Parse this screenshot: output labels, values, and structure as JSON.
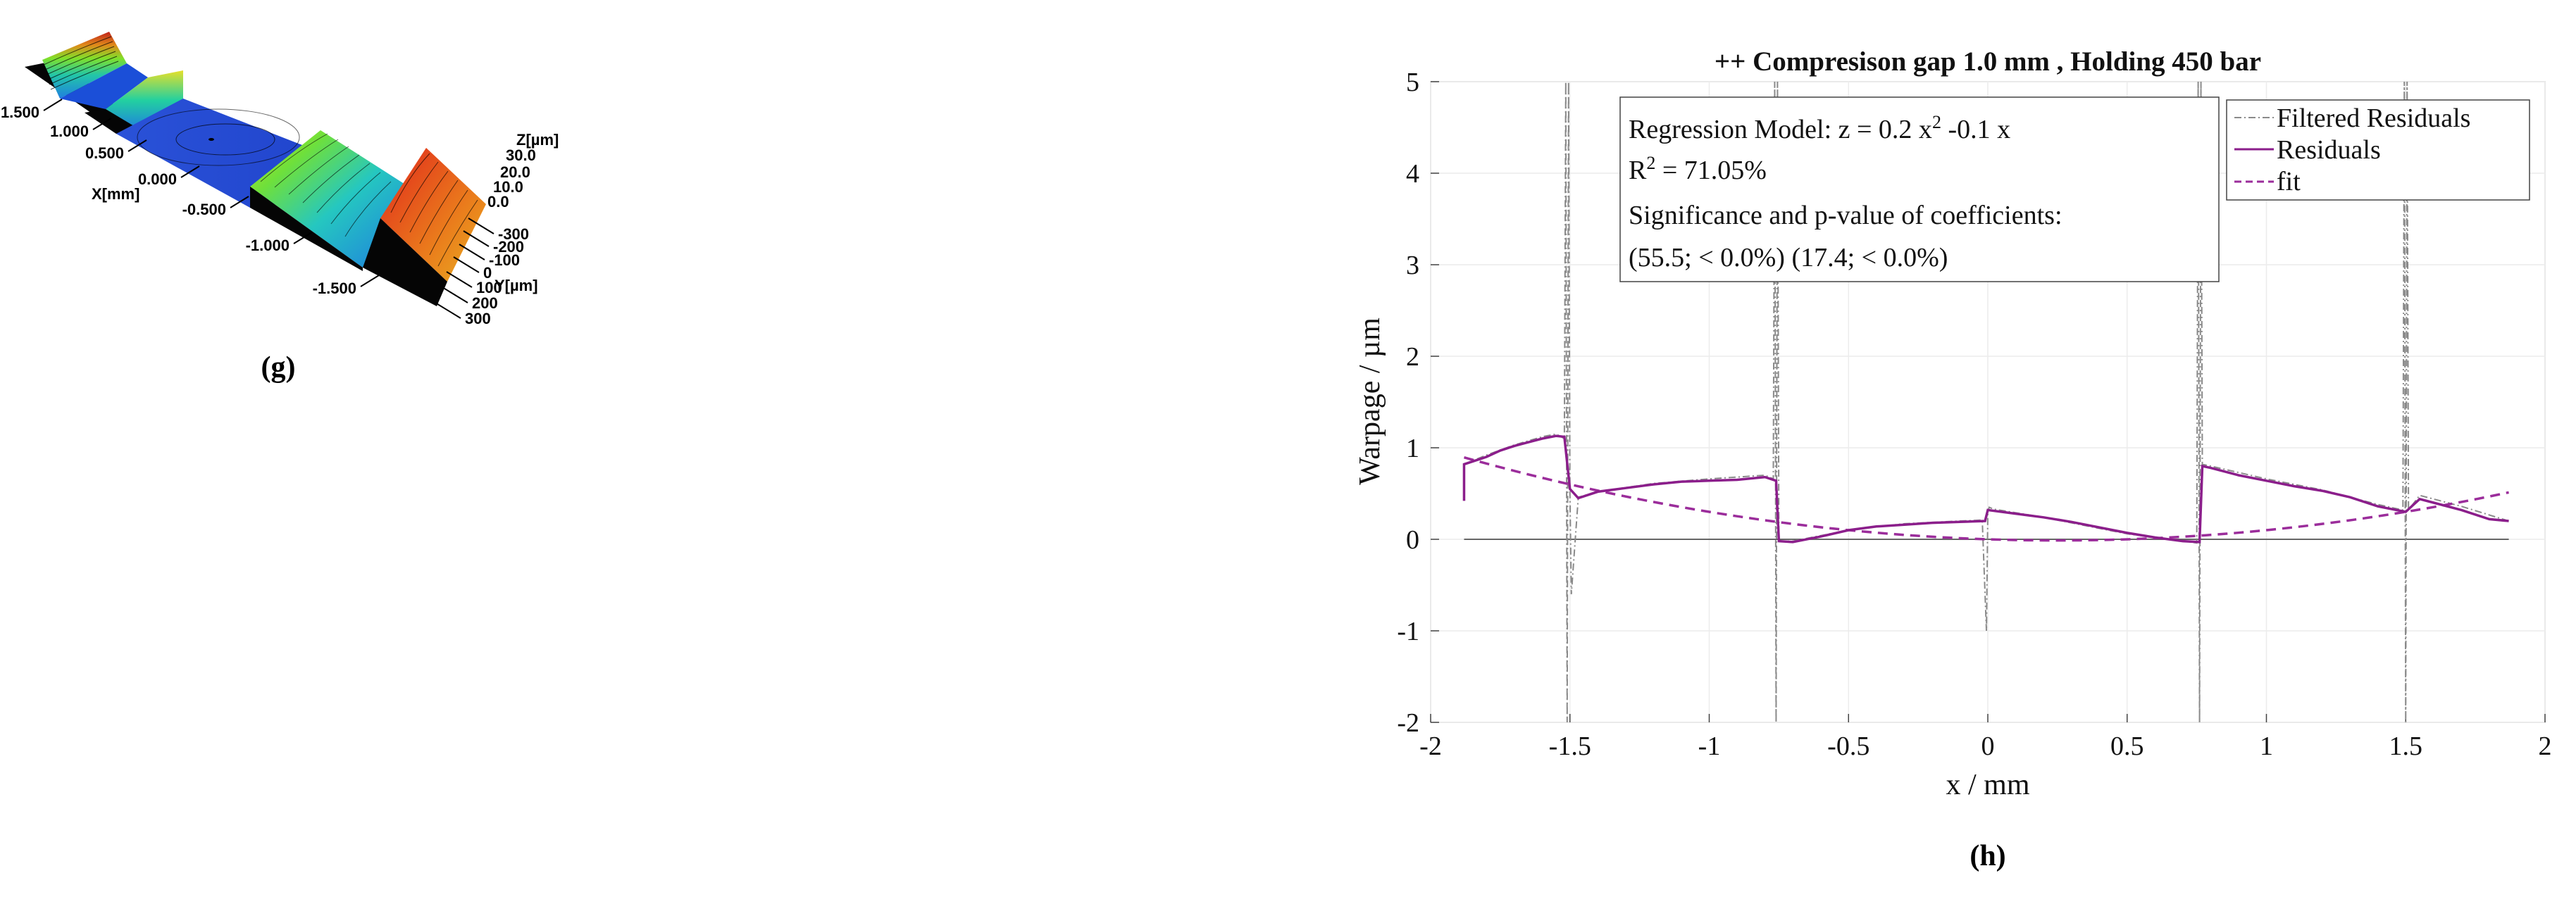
{
  "panel_labels": {
    "g": "(g)",
    "h": "(h)"
  },
  "surface_3d": {
    "x_axis": {
      "label": "X[mm]",
      "ticks": [
        "1.500",
        "1.000",
        "0.500",
        "0.000",
        "-0.500",
        "-1.000",
        "-1.500"
      ]
    },
    "y_axis": {
      "label": "Y[µm]",
      "ticks": [
        "-300",
        "-200",
        "-100",
        "0",
        "100",
        "200",
        "300"
      ]
    },
    "z_axis": {
      "label": "Z[µm]",
      "ticks": [
        "30.0",
        "20.0",
        "10.0",
        "0.0"
      ]
    }
  },
  "chart_data": {
    "type": "line",
    "title": "++ Compresison gap 1.0 mm , Holding 450 bar",
    "xlabel": "x / mm",
    "ylabel": "Warpage / µm",
    "xlim": [
      -2,
      2
    ],
    "ylim": [
      -2,
      5
    ],
    "xticks": [
      -2,
      -1.5,
      -1,
      -0.5,
      0,
      0.5,
      1,
      1.5,
      2
    ],
    "yticks": [
      -2,
      -1,
      0,
      1,
      2,
      3,
      4,
      5
    ],
    "xtick_labels": [
      "-2",
      "-1.5",
      "-1",
      "-0.5",
      "0",
      "0.5",
      "1",
      "1.5",
      "2"
    ],
    "ytick_labels": [
      "-2",
      "-1",
      "0",
      "1",
      "2",
      "3",
      "4",
      "5"
    ],
    "grid": true,
    "legend_position": "top-right",
    "legend": [
      "Filtered Residuals",
      "Residuals",
      "fit"
    ],
    "colors": {
      "residuals": "#8B1E8B",
      "fit": "#9B2D9B",
      "filtered": "#8a8a8a",
      "zero_line": "#666666"
    },
    "annotation": {
      "model_prefix": "Regression Model: z = 0.2 x",
      "model_exp": "2",
      "model_suffix": " -0.1 x",
      "r2_prefix": "R",
      "r2_exp": "2",
      "r2_suffix": " = 71.05%",
      "sig_title": "Significance and p-value of coefficients:",
      "sig_values": "(55.5; < 0.0%) (17.4; < 0.0%)"
    },
    "fit": {
      "a": 0.2,
      "b": -0.1,
      "c": 0,
      "x_range": [
        -1.88,
        1.87
      ]
    },
    "residuals": {
      "x": [
        -1.88,
        -1.88,
        -1.8,
        -1.75,
        -1.7,
        -1.65,
        -1.6,
        -1.55,
        -1.52,
        -1.5,
        -1.47,
        -1.4,
        -1.3,
        -1.2,
        -1.1,
        -1.0,
        -0.9,
        -0.8,
        -0.76,
        -0.75,
        -0.7,
        -0.6,
        -0.5,
        -0.4,
        -0.3,
        -0.2,
        -0.1,
        -0.01,
        0.0,
        0.1,
        0.2,
        0.3,
        0.4,
        0.5,
        0.6,
        0.7,
        0.76,
        0.77,
        0.8,
        0.9,
        1.0,
        1.1,
        1.2,
        1.3,
        1.4,
        1.5,
        1.55,
        1.6,
        1.7,
        1.8,
        1.87
      ],
      "y": [
        0.42,
        0.82,
        0.9,
        0.97,
        1.02,
        1.06,
        1.1,
        1.13,
        1.12,
        0.55,
        0.45,
        0.52,
        0.56,
        0.6,
        0.63,
        0.64,
        0.65,
        0.68,
        0.64,
        -0.02,
        -0.03,
        0.03,
        0.1,
        0.14,
        0.16,
        0.18,
        0.19,
        0.2,
        0.32,
        0.28,
        0.24,
        0.19,
        0.13,
        0.07,
        0.02,
        -0.02,
        -0.03,
        0.8,
        0.78,
        0.7,
        0.64,
        0.58,
        0.53,
        0.46,
        0.36,
        0.3,
        0.44,
        0.4,
        0.32,
        0.22,
        0.2
      ]
    },
    "filtered_residuals": {
      "x": [
        -1.88,
        -1.8,
        -1.7,
        -1.6,
        -1.55,
        -1.52,
        -1.515,
        -1.51,
        -1.505,
        -1.5,
        -1.495,
        -1.47,
        -1.4,
        -1.2,
        -1.0,
        -0.8,
        -0.77,
        -0.765,
        -0.76,
        -0.755,
        -0.75,
        -0.7,
        -0.5,
        -0.3,
        -0.1,
        -0.02,
        -0.005,
        0.0,
        0.005,
        0.02,
        0.2,
        0.5,
        0.7,
        0.75,
        0.755,
        0.76,
        0.765,
        0.77,
        0.8,
        1.0,
        1.2,
        1.4,
        1.49,
        1.495,
        1.5,
        1.505,
        1.51,
        1.55,
        1.7,
        1.87
      ],
      "y": [
        0.82,
        0.92,
        1.03,
        1.12,
        1.15,
        1.1,
        5.0,
        -2.0,
        5.0,
        0.5,
        -0.6,
        0.46,
        0.52,
        0.61,
        0.66,
        0.7,
        0.66,
        5.0,
        -2.0,
        5.0,
        -0.02,
        -0.02,
        0.1,
        0.17,
        0.2,
        0.21,
        -1.0,
        0.3,
        0.35,
        0.33,
        0.24,
        0.06,
        -0.02,
        -0.04,
        5.0,
        -2.0,
        5.0,
        0.82,
        0.8,
        0.66,
        0.54,
        0.38,
        0.32,
        5.0,
        -2.0,
        5.0,
        0.32,
        0.48,
        0.36,
        0.2
      ]
    }
  }
}
